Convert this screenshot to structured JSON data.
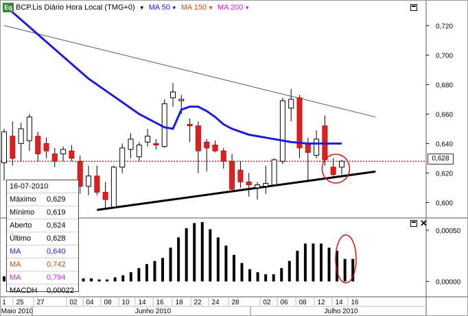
{
  "header": {
    "logo": "Eq",
    "title": "BCP.Lis Diário Hora Local (TMG+0)",
    "ma": [
      {
        "label": "MA 50",
        "color": "#1a1ae0"
      },
      {
        "label": "MA 150",
        "color": "#d04a00"
      },
      {
        "label": "MA 200",
        "color": "#d020d0"
      }
    ]
  },
  "info": {
    "date": "16-07-2010",
    "rows": [
      {
        "label": "Máximo",
        "value": "0,629",
        "color": "#000000"
      },
      {
        "label": "Mínimo",
        "value": "0,619",
        "color": "#000000"
      },
      {
        "label": "Aberto",
        "value": "0,624",
        "color": "#000000"
      },
      {
        "label": "Último",
        "value": "0,628",
        "color": "#000000"
      },
      {
        "label": "MA",
        "value": "0,640",
        "color": "#1a1ae0"
      },
      {
        "label": "MA",
        "value": "0,742",
        "color": "#b05010"
      },
      {
        "label": "MA",
        "value": "0,794",
        "color": "#d020d0"
      },
      {
        "label": "MACDH",
        "value": "0,00022",
        "color": "#000000"
      }
    ]
  },
  "last_price_label": "0,628",
  "chart_data": [
    {
      "type": "candlestick",
      "ylim": [
        0.59,
        0.735
      ],
      "yticks": [
        "0,600",
        "0,620",
        "0,640",
        "0,660",
        "0,680",
        "0,700",
        "0,720"
      ],
      "ytick_values": [
        0.6,
        0.62,
        0.64,
        0.66,
        0.68,
        0.7,
        0.72
      ],
      "last_price": 0.628,
      "candles": [
        {
          "o": 0.627,
          "h": 0.65,
          "l": 0.615,
          "c": 0.648
        },
        {
          "o": 0.645,
          "h": 0.655,
          "l": 0.625,
          "c": 0.63
        },
        {
          "o": 0.64,
          "h": 0.654,
          "l": 0.628,
          "c": 0.65
        },
        {
          "o": 0.642,
          "h": 0.66,
          "l": 0.635,
          "c": 0.658
        },
        {
          "o": 0.645,
          "h": 0.648,
          "l": 0.628,
          "c": 0.633
        },
        {
          "o": 0.64,
          "h": 0.644,
          "l": 0.63,
          "c": 0.635
        },
        {
          "o": 0.633,
          "h": 0.637,
          "l": 0.624,
          "c": 0.628
        },
        {
          "o": 0.633,
          "h": 0.638,
          "l": 0.628,
          "c": 0.636
        },
        {
          "o": 0.635,
          "h": 0.639,
          "l": 0.628,
          "c": 0.63
        },
        {
          "o": 0.628,
          "h": 0.632,
          "l": 0.606,
          "c": 0.611
        },
        {
          "o": 0.611,
          "h": 0.625,
          "l": 0.605,
          "c": 0.618
        },
        {
          "o": 0.618,
          "h": 0.625,
          "l": 0.605,
          "c": 0.607
        },
        {
          "o": 0.607,
          "h": 0.614,
          "l": 0.596,
          "c": 0.602
        },
        {
          "o": 0.597,
          "h": 0.625,
          "l": 0.596,
          "c": 0.624
        },
        {
          "o": 0.624,
          "h": 0.64,
          "l": 0.62,
          "c": 0.637
        },
        {
          "o": 0.636,
          "h": 0.647,
          "l": 0.63,
          "c": 0.643
        },
        {
          "o": 0.631,
          "h": 0.641,
          "l": 0.628,
          "c": 0.639
        },
        {
          "o": 0.641,
          "h": 0.65,
          "l": 0.638,
          "c": 0.645
        },
        {
          "o": 0.64,
          "h": 0.643,
          "l": 0.636,
          "c": 0.639
        },
        {
          "o": 0.638,
          "h": 0.67,
          "l": 0.637,
          "c": 0.667
        },
        {
          "o": 0.671,
          "h": 0.681,
          "l": 0.665,
          "c": 0.675
        },
        {
          "o": 0.669,
          "h": 0.673,
          "l": 0.66,
          "c": 0.67
        },
        {
          "o": 0.653,
          "h": 0.657,
          "l": 0.641,
          "c": 0.652
        },
        {
          "o": 0.652,
          "h": 0.655,
          "l": 0.62,
          "c": 0.635
        },
        {
          "o": 0.641,
          "h": 0.643,
          "l": 0.621,
          "c": 0.637
        },
        {
          "o": 0.639,
          "h": 0.642,
          "l": 0.634,
          "c": 0.635
        },
        {
          "o": 0.635,
          "h": 0.637,
          "l": 0.623,
          "c": 0.628
        },
        {
          "o": 0.628,
          "h": 0.633,
          "l": 0.608,
          "c": 0.609
        },
        {
          "o": 0.622,
          "h": 0.628,
          "l": 0.61,
          "c": 0.614
        },
        {
          "o": 0.614,
          "h": 0.62,
          "l": 0.604,
          "c": 0.612
        },
        {
          "o": 0.61,
          "h": 0.614,
          "l": 0.602,
          "c": 0.612
        },
        {
          "o": 0.611,
          "h": 0.625,
          "l": 0.606,
          "c": 0.613
        },
        {
          "o": 0.612,
          "h": 0.63,
          "l": 0.611,
          "c": 0.629
        },
        {
          "o": 0.628,
          "h": 0.671,
          "l": 0.626,
          "c": 0.669
        },
        {
          "o": 0.664,
          "h": 0.677,
          "l": 0.655,
          "c": 0.67
        },
        {
          "o": 0.671,
          "h": 0.673,
          "l": 0.63,
          "c": 0.637
        },
        {
          "o": 0.64,
          "h": 0.644,
          "l": 0.615,
          "c": 0.634
        },
        {
          "o": 0.632,
          "h": 0.649,
          "l": 0.63,
          "c": 0.643
        },
        {
          "o": 0.652,
          "h": 0.659,
          "l": 0.625,
          "c": 0.629
        },
        {
          "o": 0.624,
          "h": 0.63,
          "l": 0.617,
          "c": 0.619
        },
        {
          "o": 0.624,
          "h": 0.629,
          "l": 0.619,
          "c": 0.628
        }
      ],
      "ma50": [
        0.733,
        0.729,
        0.724,
        0.719,
        0.714,
        0.709,
        0.704,
        0.699,
        0.694,
        0.689,
        0.684,
        0.68,
        0.676,
        0.672,
        0.668,
        0.664,
        0.66,
        0.657,
        0.654,
        0.651,
        0.65,
        0.663,
        0.665,
        0.665,
        0.662,
        0.658,
        0.653,
        0.65,
        0.648,
        0.646,
        0.645,
        0.644,
        0.643,
        0.642,
        0.641,
        0.6405,
        0.64,
        0.64,
        0.64,
        0.64,
        0.64
      ],
      "trendlines": [
        {
          "from": [
            0,
            0.72
          ],
          "to": [
            44,
            0.658
          ],
          "color": "#555555",
          "width": 1
        },
        {
          "from": [
            11,
            0.595
          ],
          "to": [
            44,
            0.621
          ],
          "color": "#000000",
          "width": 3
        }
      ]
    },
    {
      "type": "bar",
      "title": "MACDH",
      "ylim": [
        -0.00015,
        0.0006
      ],
      "yticks": [
        "0,00000",
        "0,00050"
      ],
      "ytick_values": [
        0.0,
        0.0005
      ],
      "values": [
        5e-05,
        5e-05,
        5e-05,
        5e-05,
        5e-05,
        5e-05,
        5e-05,
        4e-05,
        4e-05,
        3e-05,
        3e-05,
        3e-05,
        2e-05,
        2e-05,
        4e-05,
        6e-05,
        9e-05,
        0.00013,
        0.00017,
        0.0002,
        0.00023,
        0.00033,
        0.00043,
        0.00052,
        0.00057,
        0.00058,
        0.00051,
        0.00043,
        0.00035,
        0.00026,
        0.00018,
        0.00012,
        9e-05,
        7e-05,
        7e-05,
        0.00013,
        0.0002,
        0.0003,
        0.00037,
        0.00037,
        0.00037,
        0.00033,
        0.0003,
        0.00022,
        0.00022
      ]
    }
  ],
  "xaxis": {
    "day_labels": [
      "1",
      "25",
      "27",
      "02",
      "04",
      "08",
      "10",
      "14",
      "16",
      "18",
      "22",
      "24",
      "28",
      "02",
      "06",
      "08",
      "12",
      "14",
      "16"
    ],
    "month_labels": [
      "Maio 2010",
      "Junho 2010",
      "Julho 2010"
    ]
  }
}
